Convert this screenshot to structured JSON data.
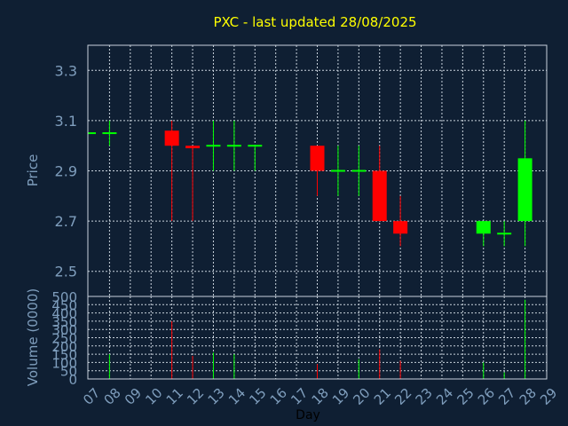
{
  "title": "PXC - last updated 28/08/2025",
  "colors": {
    "background": "#0f1f33",
    "up": "#00ff00",
    "down": "#ff0000",
    "title": "#ffff00",
    "axis_text": "#7f9ebd",
    "grid": "#c8d2dc"
  },
  "chart_data": [
    {
      "type": "candlestick",
      "ylabel": "Price",
      "ylim": [
        2.4,
        3.4
      ],
      "yticks": [
        "2.5",
        "2.7",
        "2.9",
        "3.1",
        "3.3"
      ],
      "grid": true,
      "categories": [
        "07",
        "08",
        "09",
        "10",
        "11",
        "12",
        "13",
        "14",
        "15",
        "16",
        "17",
        "18",
        "19",
        "20",
        "21",
        "22",
        "23",
        "24",
        "25",
        "26",
        "27",
        "28",
        "29"
      ],
      "candles": [
        {
          "day": "07",
          "open": 3.05,
          "high": 3.05,
          "low": 3.05,
          "close": 3.05
        },
        {
          "day": "08",
          "open": 3.05,
          "high": 3.1,
          "low": 3.0,
          "close": 3.05
        },
        {
          "day": "11",
          "open": 3.06,
          "high": 3.1,
          "low": 2.7,
          "close": 3.0
        },
        {
          "day": "12",
          "open": 3.0,
          "high": 3.0,
          "low": 2.7,
          "close": 2.99
        },
        {
          "day": "13",
          "open": 3.0,
          "high": 3.1,
          "low": 2.9,
          "close": 3.0
        },
        {
          "day": "14",
          "open": 3.0,
          "high": 3.1,
          "low": 2.9,
          "close": 3.0
        },
        {
          "day": "15",
          "open": 3.0,
          "high": 3.0,
          "low": 2.9,
          "close": 3.0
        },
        {
          "day": "18",
          "open": 3.0,
          "high": 3.0,
          "low": 2.8,
          "close": 2.9
        },
        {
          "day": "19",
          "open": 2.9,
          "high": 3.0,
          "low": 2.8,
          "close": 2.9
        },
        {
          "day": "20",
          "open": 2.9,
          "high": 3.0,
          "low": 2.8,
          "close": 2.9
        },
        {
          "day": "21",
          "open": 2.9,
          "high": 3.0,
          "low": 2.7,
          "close": 2.7
        },
        {
          "day": "22",
          "open": 2.7,
          "high": 2.8,
          "low": 2.6,
          "close": 2.65
        },
        {
          "day": "26",
          "open": 2.65,
          "high": 2.7,
          "low": 2.6,
          "close": 2.7
        },
        {
          "day": "27",
          "open": 2.65,
          "high": 2.7,
          "low": 2.6,
          "close": 2.65
        },
        {
          "day": "28",
          "open": 2.7,
          "high": 3.1,
          "low": 2.6,
          "close": 2.95
        }
      ]
    },
    {
      "type": "bar",
      "xlabel": "Day",
      "ylabel": "Volume (0000)",
      "ylim": [
        0,
        500
      ],
      "yticks": [
        "0",
        "50",
        "100",
        "150",
        "200",
        "250",
        "300",
        "350",
        "400",
        "450",
        "500"
      ],
      "grid": true,
      "bars": [
        {
          "day": "08",
          "value": 150,
          "color": "#00ff00"
        },
        {
          "day": "11",
          "value": 350,
          "color": "#ff0000"
        },
        {
          "day": "12",
          "value": 140,
          "color": "#ff0000"
        },
        {
          "day": "13",
          "value": 160,
          "color": "#00ff00"
        },
        {
          "day": "14",
          "value": 150,
          "color": "#00ff00"
        },
        {
          "day": "18",
          "value": 90,
          "color": "#ff0000"
        },
        {
          "day": "20",
          "value": 120,
          "color": "#00ff00"
        },
        {
          "day": "21",
          "value": 180,
          "color": "#ff0000"
        },
        {
          "day": "22",
          "value": 110,
          "color": "#ff0000"
        },
        {
          "day": "26",
          "value": 100,
          "color": "#00ff00"
        },
        {
          "day": "27",
          "value": 40,
          "color": "#00ff00"
        },
        {
          "day": "28",
          "value": 480,
          "color": "#00ff00"
        }
      ]
    }
  ]
}
